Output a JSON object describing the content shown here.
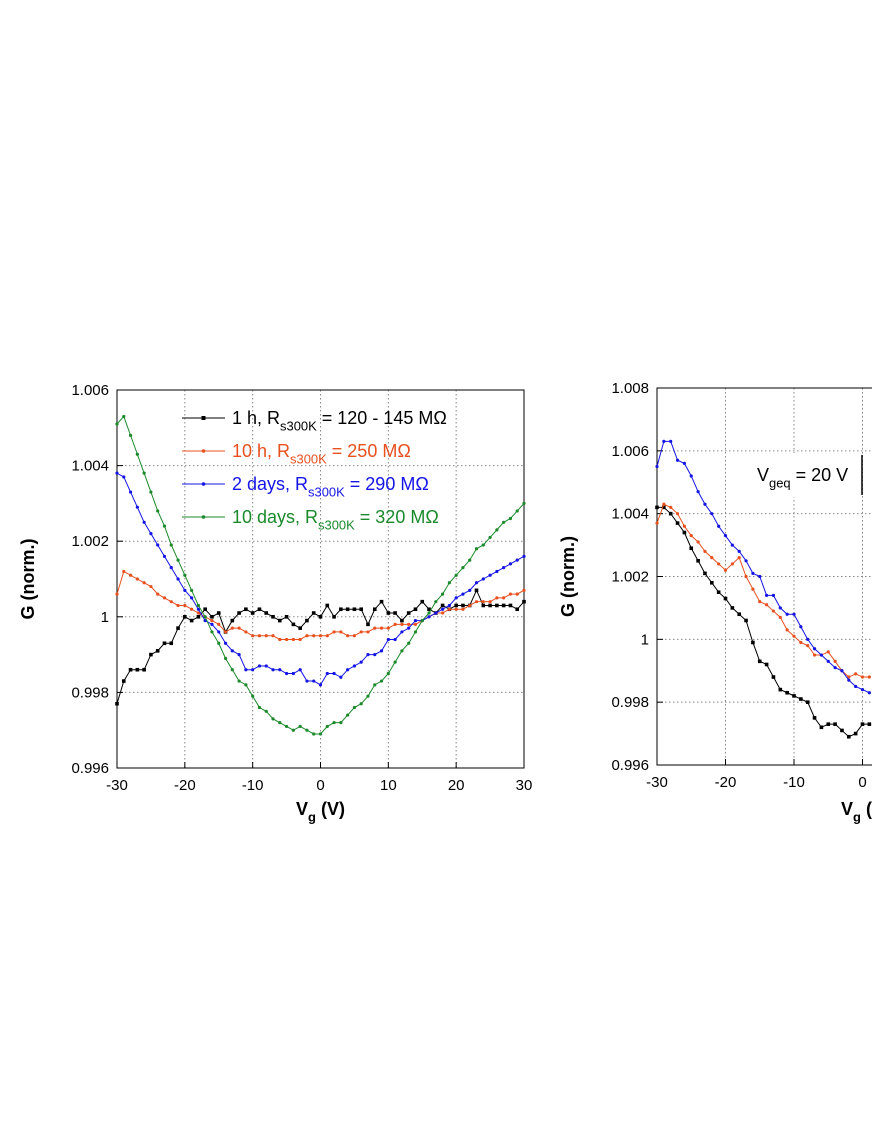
{
  "chart_data": [
    {
      "type": "line",
      "y_label": "G (norm.)",
      "x_label": [
        "V",
        "g",
        " (V)"
      ],
      "xlim": [
        -30,
        30
      ],
      "xticks": [
        -30,
        -20,
        -10,
        0,
        10,
        20,
        30
      ],
      "ylim": [
        0.996,
        1.006
      ],
      "yticks": [
        0.996,
        0.998,
        1,
        1.002,
        1.004,
        1.006
      ],
      "grid": true,
      "x": [
        -30,
        -29,
        -28,
        -27,
        -26,
        -25,
        -24,
        -23,
        -22,
        -21,
        -20,
        -19,
        -18,
        -17,
        -16,
        -15,
        -14,
        -13,
        -12,
        -11,
        -10,
        -9,
        -8,
        -7,
        -6,
        -5,
        -4,
        -3,
        -2,
        -1,
        0,
        1,
        2,
        3,
        4,
        5,
        6,
        7,
        8,
        9,
        10,
        11,
        12,
        13,
        14,
        15,
        16,
        17,
        18,
        19,
        20,
        21,
        22,
        23,
        24,
        25,
        26,
        27,
        28,
        29,
        30
      ],
      "series": [
        {
          "name": [
            "1 h, R",
            "s300K",
            " = 120 - 145 MΩ"
          ],
          "color": "#000000",
          "marker": "square",
          "values": [
            0.9977,
            0.9983,
            0.9986,
            0.9986,
            0.9986,
            0.999,
            0.9991,
            0.9993,
            0.9993,
            0.9997,
            1.0,
            0.9999,
            1.0,
            1.0002,
            1.0,
            1.0001,
            0.9996,
            0.9999,
            1.0001,
            1.0002,
            1.0001,
            1.0002,
            1.0001,
            1.0,
            0.9999,
            1.0,
            0.9998,
            0.9997,
            0.9999,
            1.0001,
            1.0,
            1.0003,
            1.0,
            1.0002,
            1.0002,
            1.0002,
            1.0002,
            0.9998,
            1.0002,
            1.0004,
            1.0001,
            1.0001,
            0.9999,
            1.0001,
            1.0002,
            1.0004,
            1.0002,
            1.0001,
            1.0003,
            1.0002,
            1.0003,
            1.0003,
            1.0003,
            1.0007,
            1.0003,
            1.0003,
            1.0003,
            1.0003,
            1.0003,
            1.0002,
            1.0004
          ]
        },
        {
          "name": [
            "10 h, R",
            "s300K",
            " = 250 MΩ"
          ],
          "color": "#e8501e",
          "marker": "circle",
          "values": [
            1.0006,
            1.0012,
            1.0011,
            1.001,
            1.0009,
            1.0008,
            1.0006,
            1.0005,
            1.0004,
            1.0003,
            1.0003,
            1.0002,
            1.0001,
            1.0,
            0.9999,
            0.9998,
            0.9996,
            0.9997,
            0.9997,
            0.9996,
            0.9995,
            0.9995,
            0.9995,
            0.9995,
            0.9994,
            0.9994,
            0.9994,
            0.9994,
            0.9995,
            0.9995,
            0.9995,
            0.9995,
            0.9996,
            0.9996,
            0.9995,
            0.9995,
            0.9996,
            0.9996,
            0.9997,
            0.9997,
            0.9997,
            0.9998,
            0.9998,
            0.9998,
            0.9998,
            0.9999,
            1.0,
            1.0001,
            1.0001,
            1.0002,
            1.0002,
            1.0002,
            1.0003,
            1.0004,
            1.0004,
            1.0004,
            1.0005,
            1.0005,
            1.0006,
            1.0006,
            1.0007
          ]
        },
        {
          "name": [
            "2 days, R",
            "s300K",
            " = 290 MΩ"
          ],
          "color": "#1414e6",
          "marker": "circle",
          "values": [
            1.0038,
            1.0037,
            1.0033,
            1.0029,
            1.0025,
            1.0022,
            1.0019,
            1.0016,
            1.0013,
            1.001,
            1.0007,
            1.0005,
            1.0002,
            0.9999,
            0.9998,
            0.9996,
            0.9993,
            0.9991,
            0.999,
            0.9986,
            0.9986,
            0.9987,
            0.9987,
            0.9986,
            0.9986,
            0.9985,
            0.9985,
            0.9986,
            0.9983,
            0.9983,
            0.9982,
            0.9985,
            0.9985,
            0.9984,
            0.9986,
            0.9987,
            0.9988,
            0.999,
            0.999,
            0.9991,
            0.9994,
            0.9994,
            0.9996,
            0.9997,
            0.9999,
            0.9999,
            1.0,
            1.0001,
            1.0002,
            1.0003,
            1.0005,
            1.0006,
            1.0007,
            1.0009,
            1.001,
            1.0011,
            1.0012,
            1.0013,
            1.0014,
            1.0015,
            1.0016
          ]
        },
        {
          "name": [
            "10 days, R",
            "s300K",
            " = 320 MΩ"
          ],
          "color": "#1a8a2a",
          "marker": "circle",
          "values": [
            1.0051,
            1.0053,
            1.0048,
            1.0043,
            1.0038,
            1.0033,
            1.0028,
            1.0024,
            1.0019,
            1.0015,
            1.0011,
            1.0007,
            1.0003,
            1.0,
            0.9996,
            0.9993,
            0.9989,
            0.9986,
            0.9983,
            0.9982,
            0.9979,
            0.9976,
            0.9975,
            0.9973,
            0.9972,
            0.9971,
            0.997,
            0.9971,
            0.997,
            0.9969,
            0.9969,
            0.9971,
            0.9972,
            0.9972,
            0.9974,
            0.9976,
            0.9977,
            0.9979,
            0.9982,
            0.9983,
            0.9985,
            0.9988,
            0.9991,
            0.9993,
            0.9996,
            0.9999,
            1.0001,
            1.0004,
            1.0006,
            1.0009,
            1.0011,
            1.0013,
            1.0015,
            1.0018,
            1.0019,
            1.0021,
            1.0023,
            1.0025,
            1.0026,
            1.0028,
            1.003
          ]
        }
      ]
    },
    {
      "type": "line",
      "y_label": "G (norm.)",
      "x_label": [
        "V",
        "g",
        " (V"
      ],
      "xlim": [
        -30,
        30
      ],
      "xticks": [
        -30,
        -20,
        -10,
        0
      ],
      "ylim": [
        0.996,
        1.008
      ],
      "yticks": [
        0.996,
        0.998,
        1,
        1.002,
        1.004,
        1.006,
        1.008
      ],
      "grid": true,
      "annotation": [
        "V",
        "geq",
        " = 20 V"
      ],
      "x": [
        -30,
        -29,
        -28,
        -27,
        -26,
        -25,
        -24,
        -23,
        -22,
        -21,
        -20,
        -19,
        -18,
        -17,
        -16,
        -15,
        -14,
        -13,
        -12,
        -11,
        -10,
        -9,
        -8,
        -7,
        -6,
        -5,
        -4,
        -3,
        -2,
        -1,
        0,
        1
      ],
      "series": [
        {
          "color": "#000000",
          "marker": "square",
          "values": [
            1.0042,
            1.0042,
            1.004,
            1.0037,
            1.0034,
            1.0029,
            1.0025,
            1.0021,
            1.0018,
            1.0015,
            1.0013,
            1.001,
            1.0008,
            1.0006,
            0.9999,
            0.9993,
            0.9992,
            0.9988,
            0.9984,
            0.9983,
            0.9982,
            0.9981,
            0.998,
            0.9975,
            0.9972,
            0.9973,
            0.9973,
            0.9971,
            0.9969,
            0.997,
            0.9973,
            0.9973
          ]
        },
        {
          "color": "#e8501e",
          "marker": "circle",
          "values": [
            1.0037,
            1.0043,
            1.0042,
            1.004,
            1.0036,
            1.0033,
            1.0031,
            1.0028,
            1.0026,
            1.0024,
            1.0022,
            1.0024,
            1.0026,
            1.002,
            1.0016,
            1.0012,
            1.0011,
            1.0009,
            1.0007,
            1.0003,
            1.0001,
            0.9999,
            0.9998,
            0.9995,
            0.9995,
            0.9996,
            0.9993,
            0.999,
            0.9988,
            0.9989,
            0.9988,
            0.9988
          ]
        },
        {
          "color": "#1414e6",
          "marker": "circle",
          "values": [
            1.0055,
            1.0063,
            1.0063,
            1.0057,
            1.0056,
            1.0052,
            1.0047,
            1.0043,
            1.004,
            1.0036,
            1.0033,
            1.003,
            1.0028,
            1.0025,
            1.0021,
            1.002,
            1.0014,
            1.0014,
            1.001,
            1.0008,
            1.0008,
            1.0004,
            1.0,
            0.9997,
            0.9995,
            0.9993,
            0.9991,
            0.999,
            0.9987,
            0.9985,
            0.9984,
            0.9983
          ]
        }
      ]
    }
  ]
}
